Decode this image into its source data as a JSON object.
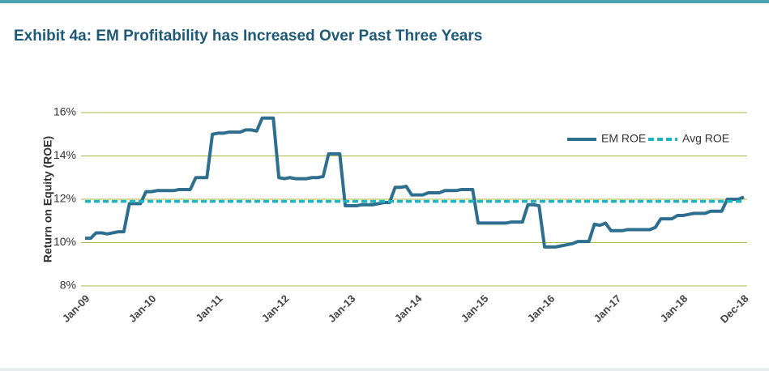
{
  "chart_data": {
    "type": "line",
    "title": "Exhibit 4a: EM Profitability has Increased Over Past Three Years",
    "y_label": "Return on Equity (ROE)",
    "categories": [
      "Jan-09",
      null,
      null,
      null,
      null,
      null,
      null,
      null,
      null,
      null,
      null,
      null,
      "Jan-10",
      null,
      null,
      null,
      null,
      null,
      null,
      null,
      null,
      null,
      null,
      null,
      "Jan-11",
      null,
      null,
      null,
      null,
      null,
      null,
      null,
      null,
      null,
      null,
      null,
      "Jan-12",
      null,
      null,
      null,
      null,
      null,
      null,
      null,
      null,
      null,
      null,
      null,
      "Jan-13",
      null,
      null,
      null,
      null,
      null,
      null,
      null,
      null,
      null,
      null,
      null,
      "Jan-14",
      null,
      null,
      null,
      null,
      null,
      null,
      null,
      null,
      null,
      null,
      null,
      "Jan-15",
      null,
      null,
      null,
      null,
      null,
      null,
      null,
      null,
      null,
      null,
      null,
      "Jan-16",
      null,
      null,
      null,
      null,
      null,
      null,
      null,
      null,
      null,
      null,
      null,
      "Jan-17",
      null,
      null,
      null,
      null,
      null,
      null,
      null,
      null,
      null,
      null,
      null,
      "Jan-18",
      null,
      null,
      null,
      null,
      null,
      null,
      null,
      null,
      null,
      null,
      "Dec-18"
    ],
    "series": [
      {
        "name": "EM ROE",
        "color": "#2e6e8e",
        "line_style": "solid",
        "values": [
          10.2,
          10.2,
          10.45,
          10.45,
          10.4,
          10.45,
          10.5,
          10.5,
          11.8,
          11.8,
          11.8,
          12.35,
          12.35,
          12.4,
          12.4,
          12.4,
          12.4,
          12.45,
          12.45,
          12.45,
          13.0,
          13.0,
          13.0,
          15.0,
          15.05,
          15.05,
          15.1,
          15.1,
          15.1,
          15.2,
          15.2,
          15.15,
          15.75,
          15.75,
          15.75,
          13.0,
          12.95,
          13.0,
          12.95,
          12.95,
          12.95,
          13.0,
          13.0,
          13.05,
          14.1,
          14.1,
          14.1,
          11.7,
          11.7,
          11.7,
          11.75,
          11.75,
          11.75,
          11.8,
          11.85,
          11.85,
          12.55,
          12.55,
          12.6,
          12.2,
          12.2,
          12.2,
          12.3,
          12.3,
          12.3,
          12.4,
          12.4,
          12.4,
          12.45,
          12.45,
          12.45,
          10.9,
          10.9,
          10.9,
          10.9,
          10.9,
          10.9,
          10.95,
          10.95,
          10.95,
          11.75,
          11.75,
          11.7,
          9.8,
          9.8,
          9.8,
          9.85,
          9.9,
          9.95,
          10.05,
          10.05,
          10.05,
          10.85,
          10.8,
          10.9,
          10.55,
          10.55,
          10.55,
          10.6,
          10.6,
          10.6,
          10.6,
          10.6,
          10.7,
          11.1,
          11.1,
          11.1,
          11.25,
          11.25,
          11.3,
          11.35,
          11.35,
          11.35,
          11.45,
          11.45,
          11.45,
          12.0,
          12.0,
          12.0,
          12.1
        ]
      },
      {
        "name": "Avg ROE",
        "color": "#1fb5c0",
        "line_style": "dashed",
        "values": [
          11.9,
          11.9,
          11.9,
          11.9,
          11.9,
          11.9,
          11.9,
          11.9,
          11.9,
          11.9,
          11.9,
          11.9,
          11.9,
          11.9,
          11.9,
          11.9,
          11.9,
          11.9,
          11.9,
          11.9,
          11.9,
          11.9,
          11.9,
          11.9,
          11.9,
          11.9,
          11.9,
          11.9,
          11.9,
          11.9,
          11.9,
          11.9,
          11.9,
          11.9,
          11.9,
          11.9,
          11.9,
          11.9,
          11.9,
          11.9,
          11.9,
          11.9,
          11.9,
          11.9,
          11.9,
          11.9,
          11.9,
          11.9,
          11.9,
          11.9,
          11.9,
          11.9,
          11.9,
          11.9,
          11.9,
          11.9,
          11.9,
          11.9,
          11.9,
          11.9,
          11.9,
          11.9,
          11.9,
          11.9,
          11.9,
          11.9,
          11.9,
          11.9,
          11.9,
          11.9,
          11.9,
          11.9,
          11.9,
          11.9,
          11.9,
          11.9,
          11.9,
          11.9,
          11.9,
          11.9,
          11.9,
          11.9,
          11.9,
          11.9,
          11.9,
          11.9,
          11.9,
          11.9,
          11.9,
          11.9,
          11.9,
          11.9,
          11.9,
          11.9,
          11.9,
          11.9,
          11.9,
          11.9,
          11.9,
          11.9,
          11.9,
          11.9,
          11.9,
          11.9,
          11.9,
          11.9,
          11.9,
          11.9,
          11.9,
          11.9,
          11.9,
          11.9,
          11.9,
          11.9,
          11.9,
          11.9,
          11.9,
          11.9,
          11.9,
          11.9
        ]
      }
    ],
    "ylim": [
      8,
      16
    ],
    "yticks": [
      {
        "value": 8,
        "label": "8%"
      },
      {
        "value": 10,
        "label": "10%"
      },
      {
        "value": 12,
        "label": "12%"
      },
      {
        "value": 14,
        "label": "14%"
      },
      {
        "value": 16,
        "label": "16%"
      }
    ],
    "grid": true,
    "grid_color": "#a8b84a",
    "legend": "upper right"
  }
}
